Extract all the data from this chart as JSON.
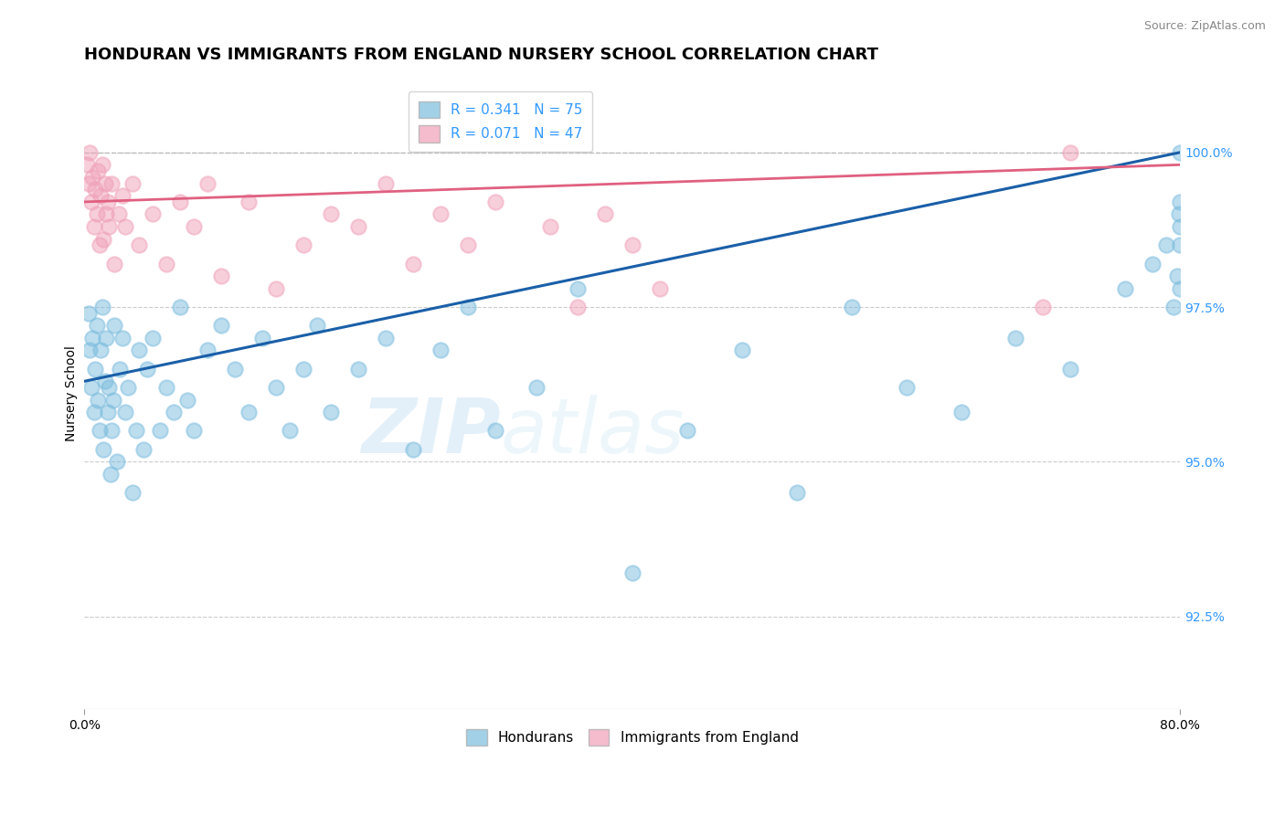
{
  "title": "HONDURAN VS IMMIGRANTS FROM ENGLAND NURSERY SCHOOL CORRELATION CHART",
  "source": "Source: ZipAtlas.com",
  "ylabel": "Nursery School",
  "legend_label1": "Hondurans",
  "legend_label2": "Immigrants from England",
  "r1": 0.341,
  "n1": 75,
  "r2": 0.071,
  "n2": 47,
  "blue_color": "#7bbcde",
  "pink_color": "#f0a0b8",
  "blue_line_color": "#1a5fa8",
  "pink_line_color": "#e06080",
  "xlim": [
    0.0,
    80.0
  ],
  "ylim": [
    91.0,
    101.2
  ],
  "right_yticks": [
    92.5,
    95.0,
    97.5,
    100.0
  ],
  "right_ytick_labels": [
    "92.5%",
    "95.0%",
    "97.5%",
    "100.0%"
  ],
  "blue_scatter_x": [
    0.3,
    0.4,
    0.5,
    0.6,
    0.7,
    0.8,
    0.9,
    1.0,
    1.1,
    1.2,
    1.3,
    1.4,
    1.5,
    1.6,
    1.7,
    1.8,
    1.9,
    2.0,
    2.1,
    2.2,
    2.4,
    2.6,
    2.8,
    3.0,
    3.2,
    3.5,
    3.8,
    4.0,
    4.3,
    4.6,
    5.0,
    5.5,
    6.0,
    6.5,
    7.0,
    7.5,
    8.0,
    9.0,
    10.0,
    11.0,
    12.0,
    13.0,
    14.0,
    15.0,
    16.0,
    17.0,
    18.0,
    20.0,
    22.0,
    24.0,
    26.0,
    28.0,
    30.0,
    33.0,
    36.0,
    40.0,
    44.0,
    48.0,
    52.0,
    56.0,
    60.0,
    64.0,
    68.0,
    72.0,
    76.0,
    78.0,
    79.0,
    79.5,
    79.8,
    79.9,
    80.0,
    80.0,
    80.0,
    80.0,
    80.0
  ],
  "blue_scatter_y": [
    97.4,
    96.8,
    96.2,
    97.0,
    95.8,
    96.5,
    97.2,
    96.0,
    95.5,
    96.8,
    97.5,
    95.2,
    96.3,
    97.0,
    95.8,
    96.2,
    94.8,
    95.5,
    96.0,
    97.2,
    95.0,
    96.5,
    97.0,
    95.8,
    96.2,
    94.5,
    95.5,
    96.8,
    95.2,
    96.5,
    97.0,
    95.5,
    96.2,
    95.8,
    97.5,
    96.0,
    95.5,
    96.8,
    97.2,
    96.5,
    95.8,
    97.0,
    96.2,
    95.5,
    96.5,
    97.2,
    95.8,
    96.5,
    97.0,
    95.2,
    96.8,
    97.5,
    95.5,
    96.2,
    97.8,
    93.2,
    95.5,
    96.8,
    94.5,
    97.5,
    96.2,
    95.8,
    97.0,
    96.5,
    97.8,
    98.2,
    98.5,
    97.5,
    98.0,
    99.0,
    98.5,
    99.2,
    97.8,
    98.8,
    100.0
  ],
  "pink_scatter_x": [
    0.2,
    0.3,
    0.4,
    0.5,
    0.6,
    0.7,
    0.8,
    0.9,
    1.0,
    1.1,
    1.2,
    1.3,
    1.4,
    1.5,
    1.6,
    1.7,
    1.8,
    2.0,
    2.2,
    2.5,
    2.8,
    3.0,
    3.5,
    4.0,
    5.0,
    6.0,
    7.0,
    8.0,
    9.0,
    10.0,
    12.0,
    14.0,
    16.0,
    18.0,
    20.0,
    22.0,
    24.0,
    26.0,
    28.0,
    30.0,
    34.0,
    36.0,
    38.0,
    40.0,
    42.0,
    70.0,
    72.0
  ],
  "pink_scatter_y": [
    99.8,
    99.5,
    100.0,
    99.2,
    99.6,
    98.8,
    99.4,
    99.0,
    99.7,
    98.5,
    99.3,
    99.8,
    98.6,
    99.5,
    99.0,
    99.2,
    98.8,
    99.5,
    98.2,
    99.0,
    99.3,
    98.8,
    99.5,
    98.5,
    99.0,
    98.2,
    99.2,
    98.8,
    99.5,
    98.0,
    99.2,
    97.8,
    98.5,
    99.0,
    98.8,
    99.5,
    98.2,
    99.0,
    98.5,
    99.2,
    98.8,
    97.5,
    99.0,
    98.5,
    97.8,
    97.5,
    100.0
  ],
  "blue_trend_x0": 0.0,
  "blue_trend_y0": 96.3,
  "blue_trend_x1": 80.0,
  "blue_trend_y1": 100.0,
  "pink_trend_x0": 0.0,
  "pink_trend_y0": 99.2,
  "pink_trend_x1": 80.0,
  "pink_trend_y1": 99.8,
  "dash_line_y": 100.0,
  "watermark_text": "ZIPatlas",
  "title_fontsize": 13,
  "axis_label_fontsize": 10,
  "tick_fontsize": 10,
  "right_tick_color": "#3399ff",
  "legend_r_n_color": "#3399ff"
}
